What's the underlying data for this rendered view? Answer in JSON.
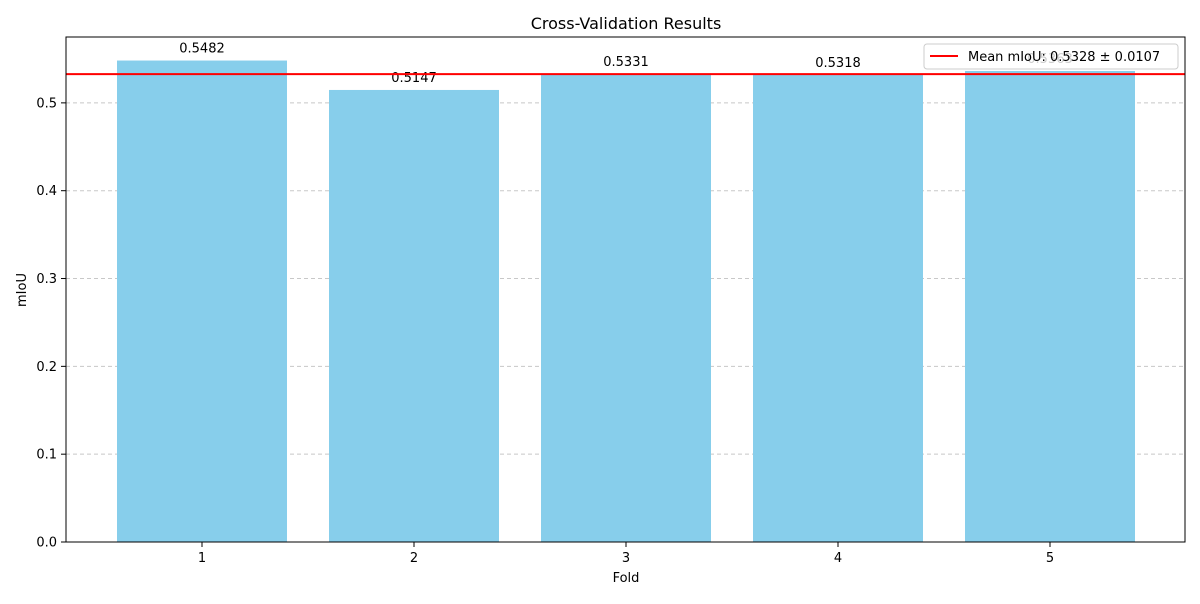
{
  "chart_data": {
    "type": "bar",
    "title": "Cross-Validation Results",
    "xlabel": "Fold",
    "ylabel": "mIoU",
    "categories": [
      "1",
      "2",
      "3",
      "4",
      "5"
    ],
    "values": [
      0.5482,
      0.5147,
      0.5331,
      0.5318,
      0.5363
    ],
    "data_labels": [
      "0.5482",
      "0.5147",
      "0.5331",
      "0.5318",
      "0.5363"
    ],
    "ylim": [
      0,
      0.575
    ],
    "yticks": [
      0.0,
      0.1,
      0.2,
      0.3,
      0.4,
      0.5
    ],
    "ytick_labels": [
      "0.0",
      "0.1",
      "0.2",
      "0.3",
      "0.4",
      "0.5"
    ],
    "grid": "y-dashed",
    "mean_line": {
      "value": 0.5328,
      "label": "Mean mIoU: 0.5328 ± 0.0107"
    },
    "legend_position": "top-right",
    "colors": {
      "bar": "#87CEEB",
      "mean_line": "#FF0000",
      "grid": "#C8C8C8",
      "axis": "#000000",
      "text": "#000000"
    }
  }
}
